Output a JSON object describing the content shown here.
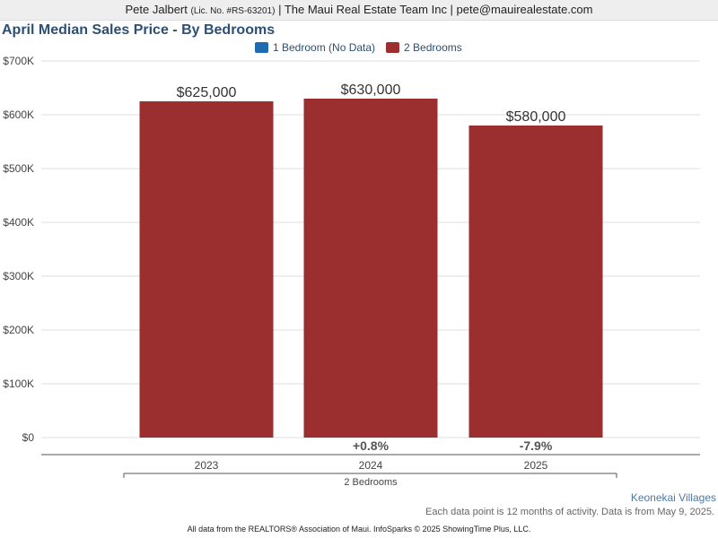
{
  "header": {
    "agent_name": "Pete Jalbert",
    "license": "(Lic. No. #RS-63201)",
    "company_email": "| The Maui Real Estate Team Inc | pete@mauirealestate.com"
  },
  "colors": {
    "bar": "#9b2f2f",
    "legend_1br": "#1f6bb0",
    "title": "#2c4f73"
  },
  "chart_data": {
    "type": "bar",
    "title": "April Median Sales Price - By Bedrooms",
    "categories": [
      "2023",
      "2024",
      "2025"
    ],
    "group_label": "2 Bedrooms",
    "series": [
      {
        "name": "1 Bedroom (No Data)",
        "values": [
          null,
          null,
          null
        ]
      },
      {
        "name": "2 Bedrooms",
        "values": [
          625000,
          630000,
          580000
        ]
      }
    ],
    "data_labels": [
      "$625,000",
      "$630,000",
      "$580,000"
    ],
    "change_labels": [
      "",
      "+0.8%",
      "-7.9%"
    ],
    "y_ticks": [
      {
        "value": 0,
        "label": "$0"
      },
      {
        "value": 100000,
        "label": "$100K"
      },
      {
        "value": 200000,
        "label": "$200K"
      },
      {
        "value": 300000,
        "label": "$300K"
      },
      {
        "value": 400000,
        "label": "$400K"
      },
      {
        "value": 500000,
        "label": "$500K"
      },
      {
        "value": 600000,
        "label": "$600K"
      },
      {
        "value": 700000,
        "label": "$700K"
      }
    ],
    "ylim": [
      0,
      700000
    ],
    "grid": true,
    "legend_position": "top"
  },
  "footer": {
    "area": "Keonekai Villages",
    "note": "Each data point is 12 months of activity. Data is from May 9, 2025.",
    "source": "All data from the REALTORS® Association of Maui. InfoSparks © 2025 ShowingTime Plus, LLC."
  }
}
